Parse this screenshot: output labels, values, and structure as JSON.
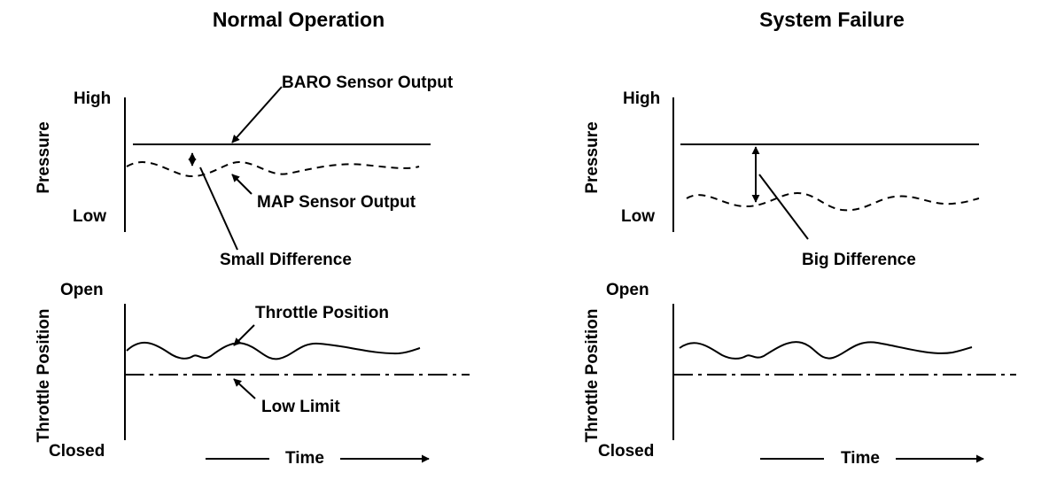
{
  "panels": {
    "normal": {
      "title": "Normal Operation",
      "pressure": {
        "axis_title": "Pressure",
        "high_label": "High",
        "low_label": "Low",
        "baro_label": "BARO Sensor Output",
        "map_label": "MAP Sensor Output",
        "difference_label": "Small Difference"
      },
      "throttle": {
        "axis_title": "Throttle Position",
        "open_label": "Open",
        "closed_label": "Closed",
        "position_label": "Throttle Position",
        "low_limit_label": "Low Limit"
      },
      "time_label": "Time"
    },
    "failure": {
      "title": "System Failure",
      "pressure": {
        "axis_title": "Pressure",
        "high_label": "High",
        "low_label": "Low",
        "difference_label": "Big Difference"
      },
      "throttle": {
        "axis_title": "Throttle Position",
        "open_label": "Open",
        "closed_label": "Closed"
      },
      "time_label": "Time"
    }
  },
  "colors": {
    "ink": "#000000",
    "background": "#ffffff"
  }
}
